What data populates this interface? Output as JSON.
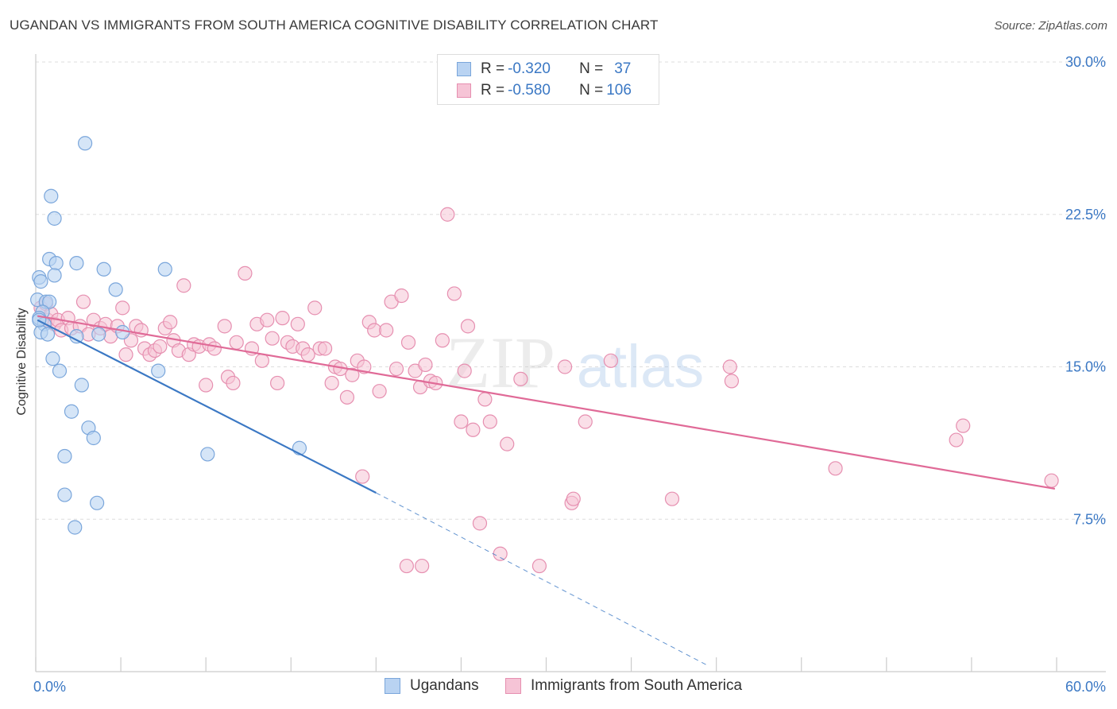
{
  "title": "UGANDAN VS IMMIGRANTS FROM SOUTH AMERICA COGNITIVE DISABILITY CORRELATION CHART",
  "source": "Source: ZipAtlas.com",
  "watermark": {
    "zip": "ZIP",
    "atlas": "atlas"
  },
  "colors": {
    "blue": "#3b78c4",
    "blue_fill": "#b9d3f2",
    "pink": "#e06a97",
    "pink_fill": "#f6c4d6",
    "grid": "#dddddd"
  },
  "legend_top": {
    "rows": [
      {
        "r_label": "R = ",
        "r_value": "-0.320",
        "n_label": "N = ",
        "n_value": "37"
      },
      {
        "r_label": "R = ",
        "r_value": "-0.580",
        "n_label": "N = ",
        "n_value": "106"
      }
    ]
  },
  "chart_data": {
    "type": "scatter",
    "title": "UGANDAN VS IMMIGRANTS FROM SOUTH AMERICA COGNITIVE DISABILITY CORRELATION CHART",
    "xlabel": "",
    "ylabel": "Cognitive Disability",
    "xlim": [
      0,
      60
    ],
    "ylim": [
      0,
      30
    ],
    "x_tick_labels": [
      "0.0%",
      "60.0%"
    ],
    "y_ticks": [
      7.5,
      15.0,
      22.5,
      30.0
    ],
    "y_tick_labels": [
      "7.5%",
      "15.0%",
      "22.5%",
      "30.0%"
    ],
    "legend": [
      "Ugandans",
      "Immigrants from South America"
    ],
    "series": [
      {
        "name": "Ugandans",
        "R": -0.32,
        "N": 37,
        "trend": {
          "x": [
            0.1,
            20.0
          ],
          "y": [
            17.3,
            8.8
          ]
        },
        "trend_extension": {
          "x": [
            20.0,
            39.5
          ],
          "y": [
            8.8,
            0.3
          ]
        },
        "points": [
          [
            2.9,
            26.0
          ],
          [
            0.9,
            23.4
          ],
          [
            1.1,
            22.3
          ],
          [
            0.8,
            20.3
          ],
          [
            1.2,
            20.1
          ],
          [
            2.4,
            20.1
          ],
          [
            4.0,
            19.8
          ],
          [
            7.6,
            19.8
          ],
          [
            0.2,
            19.4
          ],
          [
            0.3,
            19.2
          ],
          [
            1.1,
            19.5
          ],
          [
            4.7,
            18.8
          ],
          [
            0.1,
            18.3
          ],
          [
            0.6,
            18.2
          ],
          [
            0.8,
            18.2
          ],
          [
            0.4,
            17.7
          ],
          [
            0.2,
            17.4
          ],
          [
            0.5,
            17.1
          ],
          [
            0.3,
            16.7
          ],
          [
            0.7,
            16.6
          ],
          [
            2.4,
            16.5
          ],
          [
            3.7,
            16.6
          ],
          [
            5.1,
            16.7
          ],
          [
            1.0,
            15.4
          ],
          [
            1.4,
            14.8
          ],
          [
            7.2,
            14.8
          ],
          [
            2.7,
            14.1
          ],
          [
            2.1,
            12.8
          ],
          [
            3.1,
            12.0
          ],
          [
            3.4,
            11.5
          ],
          [
            1.7,
            10.6
          ],
          [
            10.1,
            10.7
          ],
          [
            15.5,
            11.0
          ],
          [
            1.7,
            8.7
          ],
          [
            3.6,
            8.3
          ],
          [
            2.3,
            7.1
          ],
          [
            0.2,
            17.3
          ]
        ]
      },
      {
        "name": "Immigrants from South America",
        "R": -0.58,
        "N": 106,
        "trend": {
          "x": [
            0.1,
            59.9
          ],
          "y": [
            17.5,
            9.0
          ]
        },
        "points": [
          [
            0.3,
            17.9
          ],
          [
            0.6,
            18.1
          ],
          [
            0.7,
            17.3
          ],
          [
            0.9,
            17.6
          ],
          [
            1.1,
            17.1
          ],
          [
            1.3,
            17.3
          ],
          [
            1.5,
            16.8
          ],
          [
            1.9,
            17.4
          ],
          [
            2.1,
            16.9
          ],
          [
            2.6,
            17.0
          ],
          [
            2.8,
            18.2
          ],
          [
            3.1,
            16.6
          ],
          [
            3.4,
            17.3
          ],
          [
            3.8,
            16.9
          ],
          [
            4.1,
            17.1
          ],
          [
            4.4,
            16.5
          ],
          [
            4.8,
            17.0
          ],
          [
            5.1,
            17.9
          ],
          [
            5.3,
            15.6
          ],
          [
            5.6,
            16.3
          ],
          [
            5.9,
            17.0
          ],
          [
            6.2,
            16.8
          ],
          [
            6.4,
            15.9
          ],
          [
            6.7,
            15.6
          ],
          [
            7.0,
            15.8
          ],
          [
            7.3,
            16.0
          ],
          [
            7.6,
            16.9
          ],
          [
            7.9,
            17.2
          ],
          [
            8.1,
            16.3
          ],
          [
            8.4,
            15.8
          ],
          [
            8.7,
            19.0
          ],
          [
            9.0,
            15.6
          ],
          [
            9.3,
            16.1
          ],
          [
            9.6,
            16.0
          ],
          [
            10.0,
            14.1
          ],
          [
            10.2,
            16.1
          ],
          [
            10.5,
            15.9
          ],
          [
            11.1,
            17.0
          ],
          [
            11.3,
            14.5
          ],
          [
            11.6,
            14.2
          ],
          [
            11.8,
            16.2
          ],
          [
            12.3,
            19.6
          ],
          [
            12.7,
            15.9
          ],
          [
            13.0,
            17.1
          ],
          [
            13.3,
            15.3
          ],
          [
            13.6,
            17.3
          ],
          [
            13.9,
            16.4
          ],
          [
            14.2,
            14.2
          ],
          [
            14.5,
            17.4
          ],
          [
            14.8,
            16.2
          ],
          [
            15.1,
            16.0
          ],
          [
            15.4,
            17.1
          ],
          [
            15.7,
            15.9
          ],
          [
            16.0,
            15.6
          ],
          [
            16.4,
            17.9
          ],
          [
            16.7,
            15.9
          ],
          [
            17.0,
            15.9
          ],
          [
            17.4,
            14.2
          ],
          [
            17.6,
            15.0
          ],
          [
            17.9,
            14.9
          ],
          [
            18.3,
            13.5
          ],
          [
            18.6,
            14.6
          ],
          [
            18.9,
            15.3
          ],
          [
            19.3,
            15.0
          ],
          [
            19.6,
            17.2
          ],
          [
            19.9,
            16.8
          ],
          [
            20.2,
            13.8
          ],
          [
            20.6,
            16.8
          ],
          [
            20.9,
            18.2
          ],
          [
            21.2,
            14.9
          ],
          [
            21.5,
            18.5
          ],
          [
            21.9,
            16.2
          ],
          [
            22.3,
            14.8
          ],
          [
            22.6,
            14.0
          ],
          [
            22.9,
            15.1
          ],
          [
            23.2,
            14.3
          ],
          [
            23.5,
            14.2
          ],
          [
            23.9,
            16.3
          ],
          [
            24.2,
            22.5
          ],
          [
            24.6,
            18.6
          ],
          [
            25.0,
            12.3
          ],
          [
            25.2,
            14.8
          ],
          [
            25.4,
            17.0
          ],
          [
            25.7,
            11.9
          ],
          [
            26.1,
            7.3
          ],
          [
            26.4,
            13.4
          ],
          [
            26.7,
            12.3
          ],
          [
            27.3,
            5.8
          ],
          [
            27.7,
            11.2
          ],
          [
            28.5,
            14.4
          ],
          [
            29.6,
            5.2
          ],
          [
            31.1,
            15.0
          ],
          [
            31.5,
            8.3
          ],
          [
            31.6,
            8.5
          ],
          [
            32.3,
            12.3
          ],
          [
            33.8,
            15.3
          ],
          [
            37.4,
            8.5
          ],
          [
            40.8,
            15.0
          ],
          [
            40.9,
            14.3
          ],
          [
            47.0,
            10.0
          ],
          [
            54.1,
            11.4
          ],
          [
            54.5,
            12.1
          ],
          [
            59.7,
            9.4
          ],
          [
            21.8,
            5.2
          ],
          [
            19.2,
            9.6
          ],
          [
            22.7,
            5.2
          ]
        ]
      }
    ]
  }
}
